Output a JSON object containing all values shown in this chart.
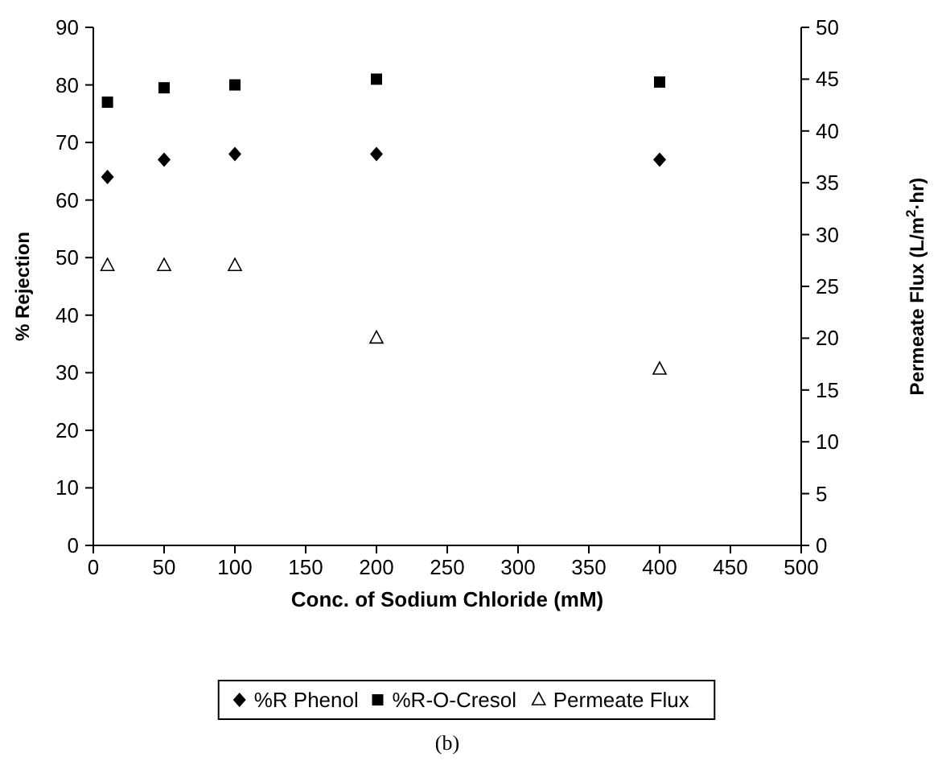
{
  "chart_data": {
    "type": "scatter",
    "xlabel": "Conc. of Sodium Chloride (mM)",
    "ylabel": "% Rejection",
    "y2label": "Permeate Flux (L/m$^{2}$·hr)",
    "x": [
      10,
      50,
      100,
      200,
      400
    ],
    "series": [
      {
        "name": "%R Phenol",
        "color": "#000000",
        "marker": "diamond",
        "values": [
          64,
          67,
          68,
          68,
          67
        ]
      },
      {
        "name": "%R-O-Cresol",
        "color": "#000000",
        "marker": "square",
        "values": [
          77,
          79.5,
          80,
          81,
          80.5
        ]
      },
      {
        "name": "Permeate Flux",
        "color": "#000000",
        "marker": "triangle",
        "axis": "y2",
        "values": [
          27,
          27,
          27,
          20,
          17
        ]
      }
    ],
    "xlim": [
      0,
      500
    ],
    "xticks": [
      0,
      50,
      100,
      150,
      200,
      250,
      300,
      350,
      400,
      450,
      500
    ],
    "ylim": [
      0,
      90
    ],
    "yticks": [
      0,
      10,
      20,
      30,
      40,
      50,
      60,
      70,
      80,
      90
    ],
    "y2lim": [
      0,
      50
    ],
    "y2ticks": [
      0,
      5,
      10,
      15,
      20,
      25,
      30,
      35,
      40,
      45,
      50
    ],
    "grid": false,
    "legend": "bottom",
    "annotations": [
      "(b)"
    ]
  }
}
